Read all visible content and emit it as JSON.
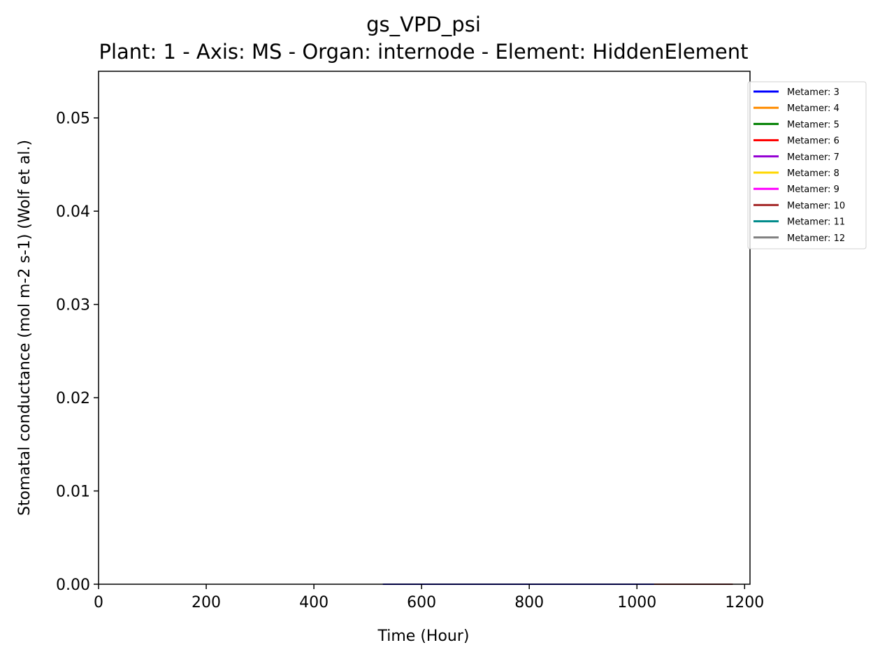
{
  "chart_data": {
    "type": "line",
    "title": "gs_VPD_psi",
    "subtitle": "Plant: 1 - Axis: MS - Organ: internode - Element: HiddenElement",
    "xlabel": "Time (Hour)",
    "ylabel": "Stomatal conductance (mol m-2 s-1) (Wolf et al.)",
    "xlim": [
      0,
      1210
    ],
    "ylim": [
      0,
      0.055
    ],
    "xticks": [
      "0",
      "200",
      "400",
      "600",
      "800",
      "1000",
      "1200"
    ],
    "xtick_values": [
      0,
      200,
      400,
      600,
      800,
      1000,
      1200
    ],
    "yticks": [
      "0.00",
      "0.01",
      "0.02",
      "0.03",
      "0.04",
      "0.05"
    ],
    "ytick_values": [
      0,
      0.01,
      0.02,
      0.03,
      0.04,
      0.05
    ],
    "grid": false,
    "legend_position": "outside-top-right",
    "series": [
      {
        "name": "Metamer: 3",
        "color": "#0000ff",
        "x": [
          528,
          1032
        ],
        "y": [
          0,
          0
        ]
      },
      {
        "name": "Metamer: 4",
        "color": "#ff8c00",
        "x": [
          1032,
          1178
        ],
        "y": [
          0,
          0
        ]
      },
      {
        "name": "Metamer: 5",
        "color": "#008000",
        "x": [],
        "y": []
      },
      {
        "name": "Metamer: 6",
        "color": "#ff0000",
        "x": [],
        "y": []
      },
      {
        "name": "Metamer: 7",
        "color": "#9400d3",
        "x": [],
        "y": []
      },
      {
        "name": "Metamer: 8",
        "color": "#ffd700",
        "x": [],
        "y": []
      },
      {
        "name": "Metamer: 9",
        "color": "#ff00ff",
        "x": [],
        "y": []
      },
      {
        "name": "Metamer: 10",
        "color": "#a52a2a",
        "x": [
          1032,
          1178
        ],
        "y": [
          0,
          0
        ]
      },
      {
        "name": "Metamer: 11",
        "color": "#008b8b",
        "x": [],
        "y": []
      },
      {
        "name": "Metamer: 12",
        "color": "#808080",
        "x": [],
        "y": []
      }
    ]
  }
}
